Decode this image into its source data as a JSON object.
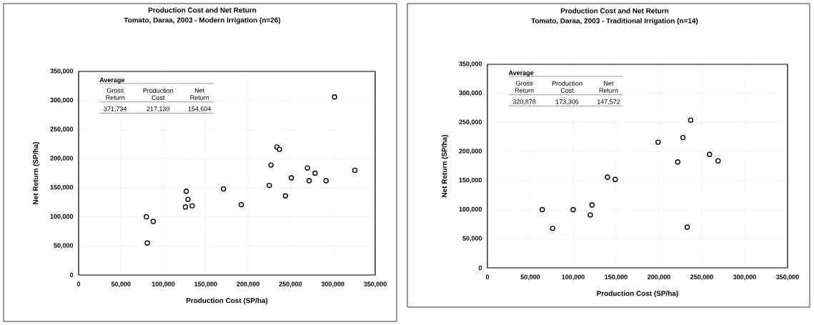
{
  "chart_data": [
    {
      "type": "scatter",
      "title": "Production Cost and Net Return",
      "subtitle": "Tomato, Daraa, 2003 - Modern Irrigation (n=26)",
      "xlabel": "Production Cost (SP/ha)",
      "ylabel": "Net Return (SP/ha)",
      "annotations": [
        "Average",
        "Gross Return",
        "Production Cost",
        "Net Return",
        "371,734",
        "217,130",
        "154,604"
      ],
      "x": [
        80000,
        88000,
        81000,
        127000,
        129000,
        126000,
        134000,
        171000,
        192000,
        234000,
        237000,
        227000,
        225000,
        251000,
        244000,
        270000,
        279000,
        272000,
        292000,
        326000,
        302000
      ],
      "values": [
        100000,
        92000,
        55000,
        144000,
        130000,
        117000,
        119000,
        148000,
        121000,
        220000,
        216000,
        189000,
        154000,
        167000,
        136000,
        184000,
        175000,
        162000,
        162000,
        180000,
        306000
      ],
      "color": "#000000",
      "marker": "circle",
      "grid": true,
      "xlim": [
        0,
        350000
      ],
      "ylim": [
        0,
        350000
      ],
      "xticks": [
        0,
        {
          "value": 50000,
          "label": "50,000"
        },
        {
          "value": 100000,
          "label": "100,000"
        },
        {
          "value": 150000,
          "label": "150,000"
        },
        {
          "value": 200000,
          "label": "200,000"
        },
        {
          "value": 250000,
          "label": "250,000"
        },
        {
          "value": 300000,
          "label": "300,000"
        },
        {
          "value": 350000,
          "label": "350,000"
        }
      ],
      "yticks": [
        0,
        {
          "value": 50000,
          "label": "50,000"
        },
        {
          "value": 100000,
          "label": "100,000"
        },
        {
          "value": 150000,
          "label": "150,000"
        },
        {
          "value": 200000,
          "label": "200,000"
        },
        {
          "value": 250000,
          "label": "250,000"
        },
        {
          "value": 300000,
          "label": "300,000"
        },
        {
          "value": 350000,
          "label": "350,000"
        }
      ]
    },
    {
      "type": "scatter",
      "title": "Production Cost and Net Return",
      "subtitle": "Tomato, Daraa, 2003 - Traditional Irrigation (n=14)",
      "xlabel": "Production Cost (SP/ha)",
      "ylabel": "Net Return (SP/ha)",
      "annotations": [
        "Average",
        "Gross Return",
        "Production Cost",
        "Net Return",
        "320,878",
        "173,306",
        "147,572"
      ],
      "x": [
        64000,
        76000,
        100000,
        122000,
        120000,
        140000,
        149000,
        237000,
        228000,
        199000,
        222000,
        259000,
        269000,
        233000
      ],
      "values": [
        100000,
        68000,
        100000,
        108000,
        91000,
        156000,
        152000,
        254000,
        224000,
        216000,
        182000,
        195000,
        184000,
        70000
      ],
      "color": "#000000",
      "marker": "circle",
      "grid": true,
      "xlim": [
        0,
        350000
      ],
      "ylim": [
        0,
        350000
      ],
      "xticks": [
        0,
        {
          "value": 50000,
          "label": "50,000"
        },
        {
          "value": 100000,
          "label": "100,000"
        },
        {
          "value": 150000,
          "label": "150,000"
        },
        {
          "value": 200000,
          "label": "200,000"
        },
        {
          "value": 250000,
          "label": "250,000"
        },
        {
          "value": 300000,
          "label": "300,000"
        },
        {
          "value": 350000,
          "label": "350,000"
        }
      ],
      "yticks": [
        0,
        {
          "value": 50000,
          "label": "50,000"
        },
        {
          "value": 100000,
          "label": "100,000"
        },
        {
          "value": 150000,
          "label": "150,000"
        },
        {
          "value": 200000,
          "label": "200,000"
        },
        {
          "value": 250000,
          "label": "250,000"
        },
        {
          "value": 300000,
          "label": "300,000"
        },
        {
          "value": 350000,
          "label": "350,000"
        }
      ]
    }
  ]
}
